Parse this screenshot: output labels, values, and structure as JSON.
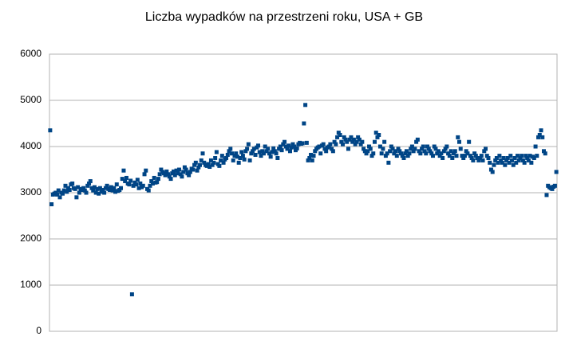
{
  "chart_data": {
    "type": "scatter",
    "title": "Liczba wypadków na przestrzeni roku, USA + GB",
    "color": "#004586",
    "ylim": [
      0,
      6000
    ],
    "yticks": [
      0,
      1000,
      2000,
      3000,
      4000,
      5000,
      6000
    ],
    "grid": true,
    "values": [
      4350,
      2750,
      2960,
      2980,
      3000,
      2960,
      3050,
      2900,
      3000,
      2980,
      3050,
      3150,
      3020,
      3100,
      3060,
      3180,
      3200,
      3100,
      3080,
      2900,
      3120,
      3000,
      3080,
      3060,
      3100,
      3050,
      3000,
      3150,
      3200,
      3250,
      3100,
      3050,
      3120,
      3000,
      3080,
      2980,
      3100,
      3020,
      3060,
      3000,
      3100,
      3150,
      3080,
      3060,
      3120,
      3050,
      3100,
      3020,
      3180,
      3040,
      3060,
      3100,
      3300,
      3480,
      3250,
      3320,
      3200,
      3180,
      3260,
      800,
      3150,
      3220,
      3180,
      3280,
      3100,
      3200,
      3120,
      3150,
      3400,
      3480,
      3080,
      3050,
      3150,
      3250,
      3200,
      3320,
      3220,
      3230,
      3300,
      3400,
      3500,
      3450,
      3420,
      3380,
      3460,
      3400,
      3350,
      3300,
      3420,
      3460,
      3380,
      3480,
      3420,
      3500,
      3400,
      3350,
      3450,
      3550,
      3500,
      3420,
      3380,
      3450,
      3520,
      3500,
      3600,
      3650,
      3480,
      3550,
      3600,
      3700,
      3850,
      3650,
      3600,
      3580,
      3620,
      3560,
      3700,
      3600,
      3650,
      3750,
      3880,
      3620,
      3580,
      3700,
      3800,
      3650,
      3720,
      3750,
      3820,
      3900,
      3950,
      3850,
      3700,
      3800,
      3850,
      3780,
      3650,
      3750,
      3880,
      3800,
      3720,
      3900,
      3950,
      4050,
      3700,
      3850,
      3900,
      3950,
      3820,
      3980,
      4020,
      3880,
      3800,
      3900,
      3850,
      4000,
      3900,
      3950,
      3850,
      3780,
      3880,
      3960,
      3900,
      3850,
      3750,
      3950,
      4000,
      3920,
      4050,
      4100,
      4000,
      3950,
      4020,
      3900,
      3980,
      4050,
      4000,
      3920,
      3960,
      4050,
      4080,
      4060,
      4070,
      4500,
      4900,
      4080,
      3700,
      3750,
      3820,
      3700,
      3800,
      3900,
      3950,
      3980,
      4000,
      3850,
      4020,
      4050,
      3950,
      3900,
      3980,
      4000,
      4050,
      3950,
      3900,
      4100,
      4050,
      4200,
      4300,
      4250,
      4100,
      4050,
      4200,
      4150,
      4100,
      3950,
      4150,
      4200,
      4100,
      4150,
      4050,
      4100,
      4200,
      4150,
      4050,
      4100,
      3950,
      3900,
      3850,
      3900,
      4000,
      3950,
      3800,
      3850,
      4100,
      4300,
      4200,
      4250,
      4000,
      3850,
      3950,
      4100,
      3800,
      3850,
      3650,
      3900,
      4000,
      3950,
      3850,
      3900,
      3800,
      3950,
      3900,
      3850,
      3800,
      3750,
      3850,
      3900,
      3800,
      3850,
      3950,
      4000,
      3900,
      3950,
      4100,
      4150,
      3900,
      3850,
      3950,
      4000,
      3900,
      3850,
      4000,
      3950,
      3900,
      3850,
      3800,
      4000,
      3950,
      3850,
      3900,
      3800,
      3850,
      3750,
      3900,
      3950,
      4000,
      3850,
      3800,
      3900,
      3750,
      3850,
      3900,
      3800,
      4200,
      4100,
      3950,
      3800,
      3750,
      3800,
      3900,
      3850,
      4100,
      3800,
      3750,
      3700,
      3850,
      3800,
      3750,
      3700,
      3750,
      3800,
      3700,
      3900,
      3950,
      3800,
      3750,
      3650,
      3500,
      3450,
      3600,
      3700,
      3750,
      3650,
      3800,
      3700,
      3650,
      3750,
      3600,
      3700,
      3750,
      3650,
      3800,
      3700,
      3600,
      3750,
      3650,
      3800,
      3700,
      3750,
      3800,
      3700,
      3650,
      3800,
      3750,
      3700,
      3800,
      3650,
      3780,
      3750,
      4000,
      3800,
      4200,
      4250,
      4350,
      4200,
      3900,
      3850,
      2950,
      3150,
      3120,
      3100,
      3080,
      3130,
      3150,
      3450
    ]
  }
}
